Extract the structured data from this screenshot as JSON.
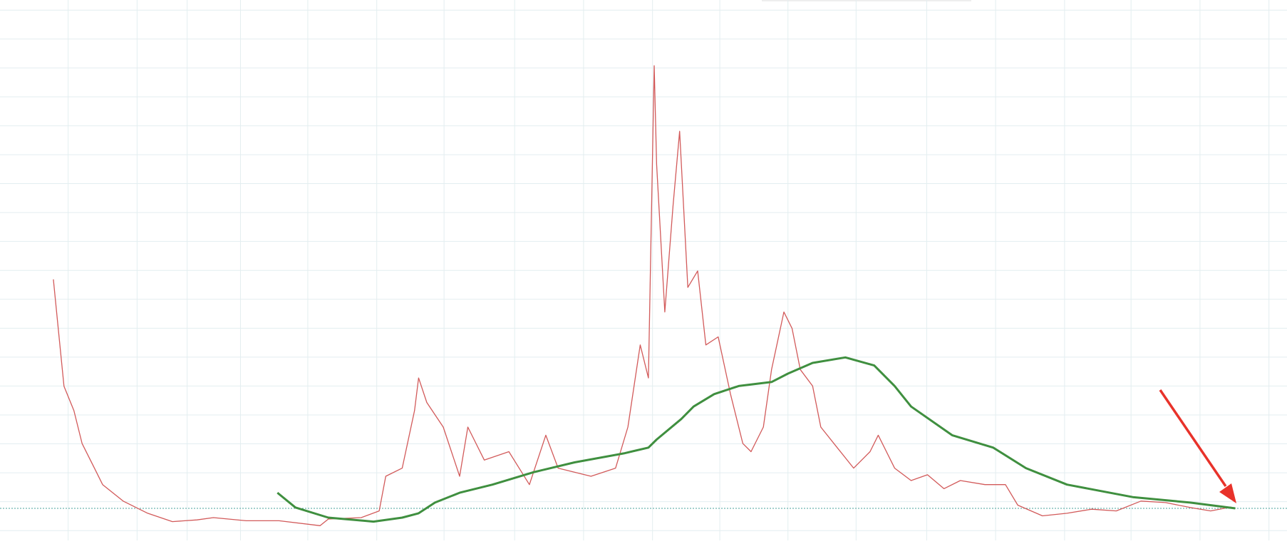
{
  "chart_data": {
    "type": "line",
    "grid": true,
    "grid_color": "#e3eef0",
    "xlim": [
      0,
      1568
    ],
    "xticks": [
      83,
      167,
      228,
      293,
      375,
      459,
      541,
      627,
      711,
      795,
      877,
      960,
      1043,
      1129,
      1213,
      1297,
      1378,
      1462,
      1546
    ],
    "ylim": [
      -0.34,
      18.35
    ],
    "yticks": [
      0,
      1,
      2,
      3,
      4,
      5,
      6,
      7,
      8,
      9,
      10,
      11,
      12,
      13,
      14,
      15,
      16,
      17,
      18
    ],
    "price_line": {
      "value": 0.77,
      "color": "#4aa39b"
    },
    "series": [
      {
        "color": "#d25a5a",
        "width": 1.3,
        "x": [
          65,
          70,
          78,
          90,
          100,
          115,
          125,
          150,
          180,
          210,
          240,
          260,
          300,
          340,
          390,
          400,
          440,
          462,
          470,
          490,
          505,
          510,
          520,
          540,
          560,
          570,
          590,
          620,
          645,
          665,
          680,
          720,
          750,
          765,
          780,
          790,
          797,
          800,
          810,
          820,
          828,
          838,
          850,
          860,
          875,
          890,
          905,
          915,
          930,
          940,
          955,
          965,
          975,
          990,
          1000,
          1020,
          1040,
          1060,
          1070,
          1090,
          1110,
          1130,
          1150,
          1170,
          1200,
          1225,
          1240,
          1270,
          1300,
          1330,
          1360,
          1390,
          1420,
          1450,
          1475,
          1500
        ],
        "values": [
          8.69,
          7.27,
          4.99,
          4.15,
          3.01,
          2.16,
          1.59,
          1.02,
          0.6,
          0.31,
          0.37,
          0.45,
          0.34,
          0.34,
          0.17,
          0.4,
          0.45,
          0.68,
          1.88,
          2.16,
          4.15,
          5.28,
          4.43,
          3.58,
          1.88,
          3.58,
          2.44,
          2.73,
          1.59,
          3.3,
          2.16,
          1.88,
          2.16,
          3.58,
          6.42,
          5.28,
          16.08,
          12.67,
          7.56,
          11.25,
          13.81,
          8.41,
          8.98,
          6.42,
          6.7,
          4.72,
          3.01,
          2.73,
          3.58,
          5.57,
          7.56,
          6.99,
          5.57,
          5.0,
          3.58,
          2.87,
          2.16,
          2.73,
          3.3,
          2.16,
          1.73,
          1.93,
          1.45,
          1.73,
          1.59,
          1.59,
          0.88,
          0.51,
          0.6,
          0.74,
          0.68,
          1.02,
          0.97,
          0.8,
          0.68,
          0.82
        ]
      },
      {
        "color": "#3f8f3f",
        "width": 3,
        "x": [
          338,
          360,
          400,
          455,
          490,
          510,
          530,
          560,
          600,
          650,
          700,
          760,
          790,
          800,
          830,
          845,
          870,
          900,
          940,
          960,
          990,
          1030,
          1065,
          1090,
          1110,
          1160,
          1210,
          1250,
          1300,
          1380,
          1450,
          1505
        ],
        "values": [
          1.31,
          0.8,
          0.45,
          0.31,
          0.45,
          0.6,
          0.97,
          1.31,
          1.59,
          2.02,
          2.36,
          2.67,
          2.87,
          3.15,
          3.86,
          4.29,
          4.72,
          5.0,
          5.14,
          5.43,
          5.8,
          5.99,
          5.71,
          5.0,
          4.29,
          3.3,
          2.87,
          2.16,
          1.59,
          1.16,
          0.97,
          0.77
        ]
      }
    ]
  }
}
